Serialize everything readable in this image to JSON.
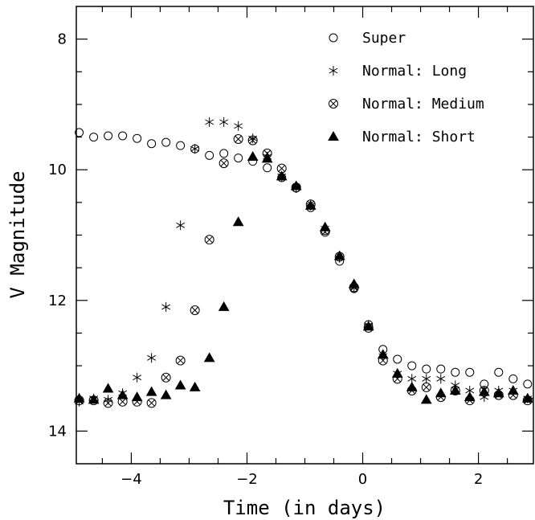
{
  "chart_data": {
    "type": "scatter",
    "title": "",
    "xlabel": "Time (in days)",
    "ylabel": "V Magnitude",
    "xlim": [
      -4.95,
      2.95
    ],
    "ylim": [
      14.5,
      7.5
    ],
    "y_inverted": true,
    "grid": false,
    "legend_position": "top-right",
    "x_ticks": [
      -4,
      -2,
      0,
      2
    ],
    "y_ticks": [
      8,
      10,
      12,
      14
    ],
    "x_minor_step": 0.5,
    "y_minor_step": 0.5,
    "series": [
      {
        "name": "Super",
        "marker": "circle",
        "points": [
          [
            -4.9,
            9.43
          ],
          [
            -4.65,
            9.5
          ],
          [
            -4.4,
            9.48
          ],
          [
            -4.15,
            9.48
          ],
          [
            -3.9,
            9.52
          ],
          [
            -3.65,
            9.6
          ],
          [
            -3.4,
            9.58
          ],
          [
            -3.15,
            9.63
          ],
          [
            -2.9,
            9.68
          ],
          [
            -2.65,
            9.78
          ],
          [
            -2.4,
            9.75
          ],
          [
            -2.15,
            9.82
          ],
          [
            -1.9,
            9.87
          ],
          [
            -1.65,
            9.97
          ],
          [
            -1.4,
            10.12
          ],
          [
            -1.15,
            10.28
          ],
          [
            -0.9,
            10.58
          ],
          [
            -0.65,
            10.93
          ],
          [
            -0.4,
            11.4
          ],
          [
            -0.15,
            11.82
          ],
          [
            0.1,
            12.37
          ],
          [
            0.35,
            12.75
          ],
          [
            0.6,
            12.9
          ],
          [
            0.85,
            13.0
          ],
          [
            1.1,
            13.05
          ],
          [
            1.35,
            13.05
          ],
          [
            1.6,
            13.1
          ],
          [
            1.85,
            13.1
          ],
          [
            2.1,
            13.28
          ],
          [
            2.35,
            13.1
          ],
          [
            2.6,
            13.2
          ],
          [
            2.85,
            13.28
          ]
        ]
      },
      {
        "name": "Normal: Long",
        "marker": "asterisk",
        "points": [
          [
            -4.9,
            13.55
          ],
          [
            -4.65,
            13.5
          ],
          [
            -4.4,
            13.52
          ],
          [
            -4.15,
            13.42
          ],
          [
            -3.9,
            13.18
          ],
          [
            -3.65,
            12.88
          ],
          [
            -3.4,
            12.1
          ],
          [
            -3.15,
            10.85
          ],
          [
            -2.9,
            9.68
          ],
          [
            -2.65,
            9.27
          ],
          [
            -2.4,
            9.27
          ],
          [
            -2.15,
            9.33
          ],
          [
            -1.9,
            9.52
          ],
          [
            -1.65,
            9.8
          ],
          [
            -1.4,
            10.1
          ],
          [
            -1.15,
            10.28
          ],
          [
            -0.9,
            10.55
          ],
          [
            -0.65,
            10.9
          ],
          [
            -0.4,
            11.35
          ],
          [
            -0.15,
            11.8
          ],
          [
            0.1,
            12.38
          ],
          [
            0.35,
            12.85
          ],
          [
            0.6,
            13.12
          ],
          [
            0.85,
            13.2
          ],
          [
            1.1,
            13.2
          ],
          [
            1.35,
            13.2
          ],
          [
            1.6,
            13.3
          ],
          [
            1.85,
            13.38
          ],
          [
            2.1,
            13.48
          ],
          [
            2.35,
            13.38
          ],
          [
            2.6,
            13.38
          ],
          [
            2.85,
            13.5
          ]
        ]
      },
      {
        "name": "Normal: Medium",
        "marker": "circle-cross",
        "points": [
          [
            -4.9,
            13.53
          ],
          [
            -4.65,
            13.53
          ],
          [
            -4.4,
            13.57
          ],
          [
            -4.15,
            13.55
          ],
          [
            -3.9,
            13.55
          ],
          [
            -3.65,
            13.57
          ],
          [
            -3.4,
            13.18
          ],
          [
            -3.15,
            12.92
          ],
          [
            -2.9,
            12.15
          ],
          [
            -2.65,
            11.07
          ],
          [
            -2.4,
            9.9
          ],
          [
            -2.15,
            9.53
          ],
          [
            -1.9,
            9.55
          ],
          [
            -1.65,
            9.75
          ],
          [
            -1.4,
            9.98
          ],
          [
            -1.15,
            10.27
          ],
          [
            -0.9,
            10.53
          ],
          [
            -0.65,
            10.95
          ],
          [
            -0.4,
            11.33
          ],
          [
            -0.15,
            11.8
          ],
          [
            0.1,
            12.42
          ],
          [
            0.35,
            12.92
          ],
          [
            0.6,
            13.2
          ],
          [
            0.85,
            13.38
          ],
          [
            1.1,
            13.33
          ],
          [
            1.35,
            13.48
          ],
          [
            1.6,
            13.38
          ],
          [
            1.85,
            13.53
          ],
          [
            2.1,
            13.38
          ],
          [
            2.35,
            13.45
          ],
          [
            2.6,
            13.45
          ],
          [
            2.85,
            13.53
          ]
        ]
      },
      {
        "name": "Normal: Short",
        "marker": "triangle",
        "points": [
          [
            -4.9,
            13.5
          ],
          [
            -4.65,
            13.52
          ],
          [
            -4.4,
            13.35
          ],
          [
            -4.15,
            13.45
          ],
          [
            -3.9,
            13.48
          ],
          [
            -3.65,
            13.4
          ],
          [
            -3.4,
            13.45
          ],
          [
            -3.15,
            13.3
          ],
          [
            -2.9,
            13.33
          ],
          [
            -2.65,
            12.88
          ],
          [
            -2.4,
            12.1
          ],
          [
            -2.15,
            10.8
          ],
          [
            -1.9,
            9.8
          ],
          [
            -1.65,
            9.83
          ],
          [
            -1.4,
            10.1
          ],
          [
            -1.15,
            10.25
          ],
          [
            -0.9,
            10.55
          ],
          [
            -0.65,
            10.88
          ],
          [
            -0.4,
            11.32
          ],
          [
            -0.15,
            11.75
          ],
          [
            0.1,
            12.4
          ],
          [
            0.35,
            12.83
          ],
          [
            0.6,
            13.12
          ],
          [
            0.85,
            13.33
          ],
          [
            1.1,
            13.52
          ],
          [
            1.35,
            13.42
          ],
          [
            1.6,
            13.38
          ],
          [
            1.85,
            13.48
          ],
          [
            2.1,
            13.4
          ],
          [
            2.35,
            13.42
          ],
          [
            2.6,
            13.38
          ],
          [
            2.85,
            13.5
          ]
        ]
      }
    ]
  }
}
